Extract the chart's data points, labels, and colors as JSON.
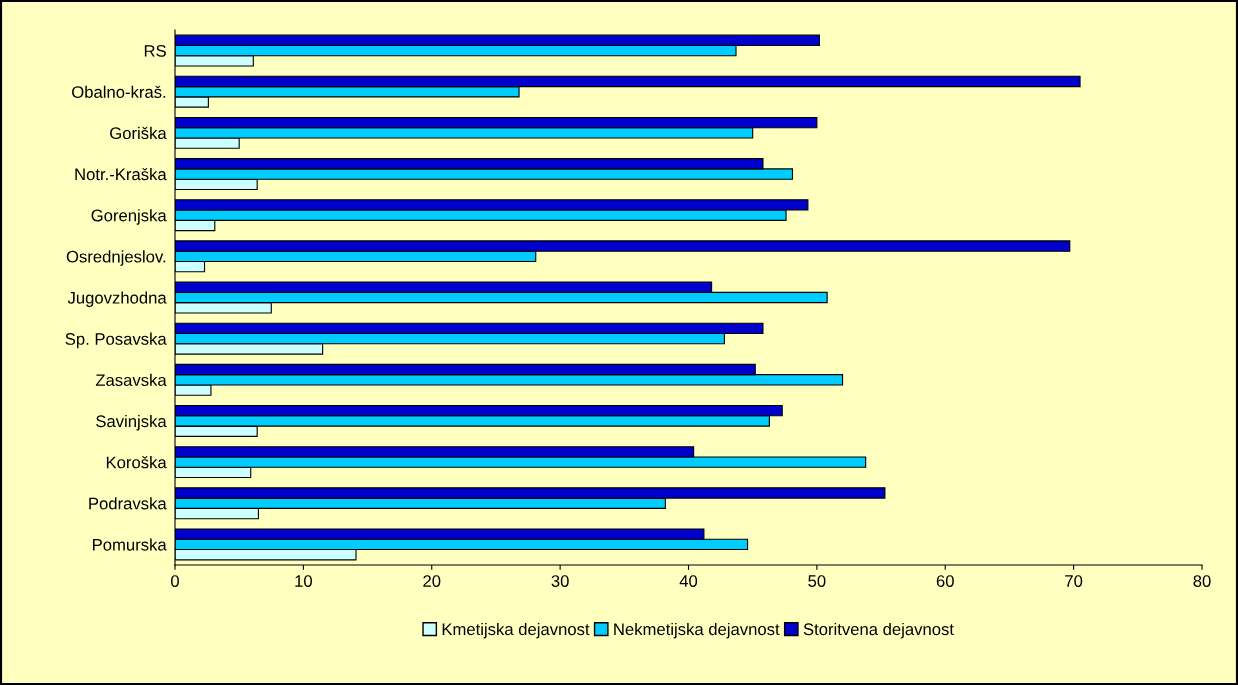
{
  "chart_data": {
    "type": "bar",
    "orientation": "horizontal",
    "categories": [
      "RS",
      "Obalno-kraš.",
      "Goriška",
      "Notr.-Kraška",
      "Gorenjska",
      "Osrednjeslov.",
      "Jugovzhodna",
      "Sp. Posavska",
      "Zasavska",
      "Savinjska",
      "Koroška",
      "Podravska",
      "Pomurska"
    ],
    "series": [
      {
        "name": "Kmetijska dejavnost",
        "color": "#ccffff",
        "values": [
          6.1,
          2.6,
          5.0,
          6.4,
          3.1,
          2.3,
          7.5,
          11.5,
          2.8,
          6.4,
          5.9,
          6.5,
          14.1
        ]
      },
      {
        "name": "Nekmetijska dejavnost",
        "color": "#00ccff",
        "values": [
          43.7,
          26.8,
          45.0,
          48.1,
          47.6,
          28.1,
          50.8,
          42.8,
          52.0,
          46.3,
          53.8,
          38.2,
          44.6
        ]
      },
      {
        "name": "Storitvena dejavnost",
        "color": "#0000cc",
        "values": [
          50.2,
          70.5,
          50.0,
          45.8,
          49.3,
          69.7,
          41.8,
          45.8,
          45.2,
          47.3,
          40.4,
          55.3,
          41.2
        ]
      }
    ],
    "xlim": [
      0,
      80
    ],
    "xticks": [
      0,
      10,
      20,
      30,
      40,
      50,
      60,
      70,
      80
    ],
    "grid": false,
    "legend": "bottom"
  }
}
